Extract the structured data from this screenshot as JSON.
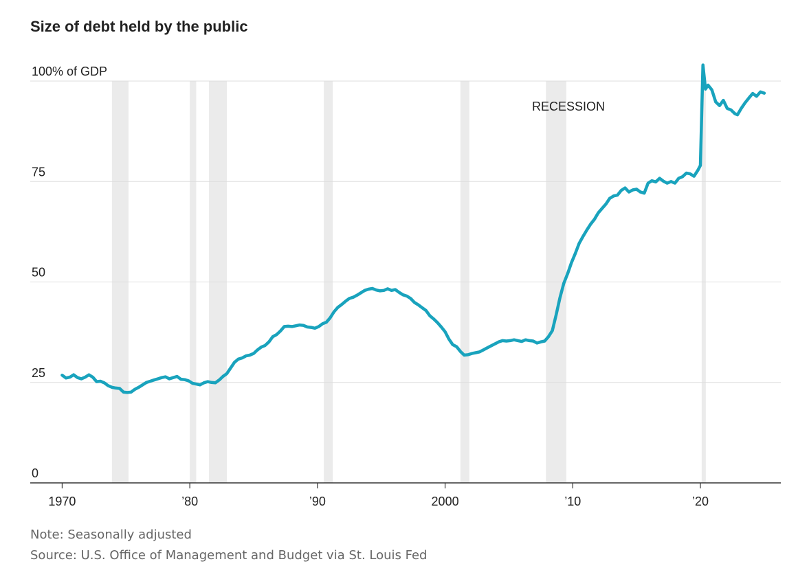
{
  "chart_data": {
    "type": "line",
    "title": "Size of debt held by the public",
    "y_ticks": [
      {
        "value": 0,
        "label": "0"
      },
      {
        "value": 25,
        "label": "25"
      },
      {
        "value": 50,
        "label": "50"
      },
      {
        "value": 75,
        "label": "75"
      },
      {
        "value": 100,
        "label": "100% of GDP"
      }
    ],
    "ylim": [
      0,
      100
    ],
    "x_ticks": [
      {
        "value": 1970,
        "label": "1970"
      },
      {
        "value": 1980,
        "label": "’80"
      },
      {
        "value": 1990,
        "label": "’90"
      },
      {
        "value": 2000,
        "label": "2000"
      },
      {
        "value": 2010,
        "label": "’10"
      },
      {
        "value": 2020,
        "label": "’20"
      }
    ],
    "xlim": [
      1967.5,
      2026.3
    ],
    "grid": true,
    "annotation": "RECESSION",
    "recessions": [
      [
        1973.9,
        1975.2
      ],
      [
        1980.0,
        1980.5
      ],
      [
        1981.5,
        1982.9
      ],
      [
        1990.5,
        1991.2
      ],
      [
        2001.2,
        2001.9
      ],
      [
        2007.9,
        2009.5
      ],
      [
        2020.1,
        2020.3
      ]
    ],
    "series": [
      {
        "color": "#19a3bd",
        "points": [
          [
            1970.0,
            26.8
          ],
          [
            1970.3,
            26.1
          ],
          [
            1970.6,
            26.3
          ],
          [
            1970.9,
            26.9
          ],
          [
            1971.2,
            26.2
          ],
          [
            1971.5,
            25.9
          ],
          [
            1971.8,
            26.3
          ],
          [
            1972.1,
            26.9
          ],
          [
            1972.4,
            26.3
          ],
          [
            1972.7,
            25.2
          ],
          [
            1973.0,
            25.3
          ],
          [
            1973.3,
            24.9
          ],
          [
            1973.6,
            24.2
          ],
          [
            1973.9,
            23.8
          ],
          [
            1974.2,
            23.6
          ],
          [
            1974.5,
            23.5
          ],
          [
            1974.8,
            22.6
          ],
          [
            1975.1,
            22.5
          ],
          [
            1975.4,
            22.6
          ],
          [
            1975.7,
            23.3
          ],
          [
            1976.0,
            23.8
          ],
          [
            1976.3,
            24.4
          ],
          [
            1976.6,
            25.0
          ],
          [
            1976.9,
            25.3
          ],
          [
            1977.2,
            25.6
          ],
          [
            1977.5,
            25.9
          ],
          [
            1977.8,
            26.2
          ],
          [
            1978.1,
            26.4
          ],
          [
            1978.4,
            25.9
          ],
          [
            1978.7,
            26.2
          ],
          [
            1979.0,
            26.5
          ],
          [
            1979.3,
            25.8
          ],
          [
            1979.6,
            25.7
          ],
          [
            1979.9,
            25.4
          ],
          [
            1980.2,
            24.8
          ],
          [
            1980.5,
            24.6
          ],
          [
            1980.8,
            24.4
          ],
          [
            1981.1,
            24.9
          ],
          [
            1981.4,
            25.2
          ],
          [
            1981.7,
            25.0
          ],
          [
            1982.0,
            24.9
          ],
          [
            1982.3,
            25.6
          ],
          [
            1982.6,
            26.5
          ],
          [
            1982.9,
            27.2
          ],
          [
            1983.2,
            28.6
          ],
          [
            1983.5,
            30.0
          ],
          [
            1983.8,
            30.8
          ],
          [
            1984.1,
            31.1
          ],
          [
            1984.4,
            31.6
          ],
          [
            1984.7,
            31.8
          ],
          [
            1985.0,
            32.2
          ],
          [
            1985.3,
            33.1
          ],
          [
            1985.6,
            33.8
          ],
          [
            1985.9,
            34.2
          ],
          [
            1986.2,
            35.1
          ],
          [
            1986.5,
            36.4
          ],
          [
            1986.8,
            36.9
          ],
          [
            1987.1,
            37.8
          ],
          [
            1987.4,
            38.9
          ],
          [
            1987.7,
            39.0
          ],
          [
            1988.0,
            38.9
          ],
          [
            1988.3,
            39.1
          ],
          [
            1988.6,
            39.3
          ],
          [
            1988.9,
            39.2
          ],
          [
            1989.2,
            38.8
          ],
          [
            1989.5,
            38.7
          ],
          [
            1989.8,
            38.5
          ],
          [
            1990.1,
            38.9
          ],
          [
            1990.4,
            39.6
          ],
          [
            1990.7,
            40.0
          ],
          [
            1991.0,
            41.1
          ],
          [
            1991.3,
            42.6
          ],
          [
            1991.6,
            43.7
          ],
          [
            1991.9,
            44.4
          ],
          [
            1992.2,
            45.2
          ],
          [
            1992.5,
            45.9
          ],
          [
            1992.8,
            46.2
          ],
          [
            1993.1,
            46.7
          ],
          [
            1993.4,
            47.3
          ],
          [
            1993.7,
            47.9
          ],
          [
            1994.0,
            48.2
          ],
          [
            1994.3,
            48.4
          ],
          [
            1994.6,
            48.0
          ],
          [
            1994.9,
            47.8
          ],
          [
            1995.2,
            47.9
          ],
          [
            1995.5,
            48.3
          ],
          [
            1995.8,
            47.9
          ],
          [
            1996.1,
            48.1
          ],
          [
            1996.4,
            47.4
          ],
          [
            1996.7,
            46.8
          ],
          [
            1997.0,
            46.5
          ],
          [
            1997.3,
            45.9
          ],
          [
            1997.6,
            44.9
          ],
          [
            1997.9,
            44.3
          ],
          [
            1998.2,
            43.6
          ],
          [
            1998.5,
            42.9
          ],
          [
            1998.8,
            41.6
          ],
          [
            1999.1,
            40.8
          ],
          [
            1999.4,
            39.9
          ],
          [
            1999.7,
            38.8
          ],
          [
            2000.0,
            37.6
          ],
          [
            2000.3,
            35.8
          ],
          [
            2000.6,
            34.4
          ],
          [
            2000.9,
            33.9
          ],
          [
            2001.2,
            32.7
          ],
          [
            2001.5,
            31.8
          ],
          [
            2001.8,
            31.9
          ],
          [
            2002.1,
            32.2
          ],
          [
            2002.4,
            32.4
          ],
          [
            2002.7,
            32.6
          ],
          [
            2003.0,
            33.1
          ],
          [
            2003.3,
            33.6
          ],
          [
            2003.6,
            34.1
          ],
          [
            2003.9,
            34.6
          ],
          [
            2004.2,
            35.1
          ],
          [
            2004.5,
            35.4
          ],
          [
            2004.8,
            35.3
          ],
          [
            2005.1,
            35.4
          ],
          [
            2005.4,
            35.6
          ],
          [
            2005.7,
            35.4
          ],
          [
            2006.0,
            35.2
          ],
          [
            2006.3,
            35.6
          ],
          [
            2006.6,
            35.4
          ],
          [
            2006.9,
            35.3
          ],
          [
            2007.2,
            34.8
          ],
          [
            2007.5,
            35.1
          ],
          [
            2007.8,
            35.3
          ],
          [
            2008.1,
            36.4
          ],
          [
            2008.4,
            37.9
          ],
          [
            2008.7,
            41.8
          ],
          [
            2009.0,
            46.1
          ],
          [
            2009.3,
            49.7
          ],
          [
            2009.6,
            52.1
          ],
          [
            2009.9,
            54.8
          ],
          [
            2010.2,
            57.1
          ],
          [
            2010.5,
            59.6
          ],
          [
            2010.8,
            61.3
          ],
          [
            2011.1,
            62.9
          ],
          [
            2011.4,
            64.4
          ],
          [
            2011.7,
            65.6
          ],
          [
            2012.0,
            67.2
          ],
          [
            2012.3,
            68.3
          ],
          [
            2012.6,
            69.4
          ],
          [
            2012.9,
            70.8
          ],
          [
            2013.2,
            71.4
          ],
          [
            2013.5,
            71.6
          ],
          [
            2013.8,
            72.8
          ],
          [
            2014.1,
            73.4
          ],
          [
            2014.4,
            72.4
          ],
          [
            2014.7,
            72.9
          ],
          [
            2015.0,
            73.1
          ],
          [
            2015.3,
            72.4
          ],
          [
            2015.6,
            72.1
          ],
          [
            2015.9,
            74.6
          ],
          [
            2016.2,
            75.2
          ],
          [
            2016.5,
            74.9
          ],
          [
            2016.8,
            75.8
          ],
          [
            2017.1,
            75.1
          ],
          [
            2017.4,
            74.6
          ],
          [
            2017.7,
            75.0
          ],
          [
            2018.0,
            74.6
          ],
          [
            2018.3,
            75.8
          ],
          [
            2018.6,
            76.2
          ],
          [
            2018.9,
            77.1
          ],
          [
            2019.2,
            76.9
          ],
          [
            2019.5,
            76.3
          ],
          [
            2019.8,
            77.8
          ],
          [
            2020.0,
            79.0
          ],
          [
            2020.2,
            104.0
          ],
          [
            2020.4,
            98.0
          ],
          [
            2020.6,
            99.0
          ],
          [
            2020.9,
            97.8
          ],
          [
            2021.2,
            94.8
          ],
          [
            2021.5,
            93.9
          ],
          [
            2021.8,
            95.2
          ],
          [
            2022.1,
            93.2
          ],
          [
            2022.4,
            92.8
          ],
          [
            2022.7,
            91.9
          ],
          [
            2022.9,
            91.6
          ],
          [
            2023.2,
            93.2
          ],
          [
            2023.5,
            94.6
          ],
          [
            2023.8,
            95.8
          ],
          [
            2024.1,
            96.9
          ],
          [
            2024.4,
            96.2
          ],
          [
            2024.7,
            97.3
          ],
          [
            2025.0,
            97.0
          ]
        ]
      }
    ]
  },
  "footer": {
    "note": "Note: Seasonally adjusted",
    "source": "Source: U.S. Office of Management and Budget via St. Louis Fed"
  }
}
